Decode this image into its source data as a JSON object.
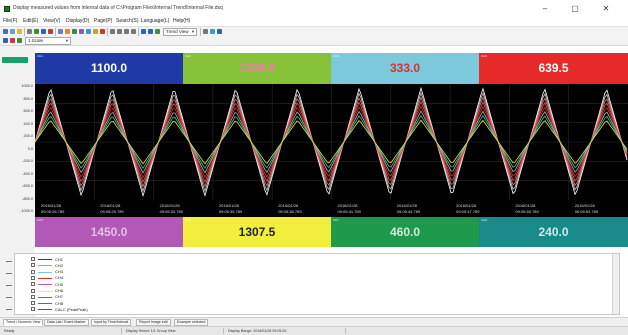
{
  "window": {
    "title": "Display measured values from internal data of C:\\Program Files\\Internal Trend\\Internal File.dsq",
    "minimize": "–",
    "maximize": "▢",
    "close": "✕"
  },
  "menu": [
    "File(F)",
    "Edit(E)",
    "View(V)",
    "Display(D)",
    "Page(P)",
    "Search(S)",
    "Language(L)",
    "Help(H)"
  ],
  "toolbar": {
    "zoom_value": "1 Scale",
    "display_select": "Trend View"
  },
  "panels_top": [
    {
      "tag": "CH1",
      "value": "1100.0",
      "bg": "#1f3aa6",
      "fg": "#ffffff"
    },
    {
      "tag": "CH2",
      "value": "1288.0",
      "bg": "#86c33b",
      "fg": "#f07aa8"
    },
    {
      "tag": "CH3",
      "value": "333.0",
      "bg": "#7bc9db",
      "fg": "#d83232"
    },
    {
      "tag": "CH4",
      "value": "639.5",
      "bg": "#e62a2a",
      "fg": "#ffffff"
    }
  ],
  "panels_bottom": [
    {
      "tag": "CH5",
      "value": "1450.0",
      "bg": "#b259b7",
      "fg": "#e6bfe8"
    },
    {
      "tag": "CH6",
      "value": "1307.5",
      "bg": "#f2ef3c",
      "fg": "#222222"
    },
    {
      "tag": "CH7",
      "value": "460.0",
      "bg": "#1f9a4c",
      "fg": "#cfe9d7"
    },
    {
      "tag": "CH8",
      "value": "240.0",
      "bg": "#198a8a",
      "fg": "#cfe8e8"
    }
  ],
  "y_axis": {
    "labels": [
      "1000.0",
      "800.0",
      "600.0",
      "400.0",
      "200.0",
      "0.0",
      "-200.0",
      "-400.0",
      "-600.0",
      "-800.0",
      "-1000.0"
    ]
  },
  "time_labels": [
    {
      "date": "2016/01/28",
      "time": "09:05:26.789"
    },
    {
      "date": "2016/01/28",
      "time": "09:05:29.789"
    },
    {
      "date": "2016/01/28",
      "time": "09:05:32.789"
    },
    {
      "date": "2016/01/28",
      "time": "09:05:35.789"
    },
    {
      "date": "2016/01/28",
      "time": "09:05:38.789"
    },
    {
      "date": "2016/01/28",
      "time": "09:05:41.789"
    },
    {
      "date": "2016/01/28",
      "time": "09:05:44.789"
    },
    {
      "date": "2016/01/28",
      "time": "09:05:47.789"
    },
    {
      "date": "2016/01/28",
      "time": "09:05:50.789"
    },
    {
      "date": "2016/01/28",
      "time": "09:05:53.789"
    }
  ],
  "trend": {
    "cycles": 9.6,
    "colors": [
      "#ffffff",
      "#d8c6c6",
      "#e07a7a",
      "#ff4d4d",
      "#c43a3a",
      "#b4b4b4",
      "#2fd09a",
      "#f0e442"
    ]
  },
  "legend": [
    {
      "label": "CH1",
      "color": "#1f3aa6"
    },
    {
      "label": "CH2",
      "color": "#86c33b"
    },
    {
      "label": "CH3",
      "color": "#7bc9db"
    },
    {
      "label": "CH4",
      "color": "#e62a2a"
    },
    {
      "label": "CH5",
      "color": "#b259b7"
    },
    {
      "label": "CH6",
      "color": "#f2ef3c"
    },
    {
      "label": "CH7",
      "color": "#1f9a4c"
    },
    {
      "label": "CH8",
      "color": "#198a8a"
    },
    {
      "label": "CALC (PeakPeak)",
      "color": "#555555"
    }
  ],
  "tabs": [
    "Trend / Numeric View",
    "Data List / Event Marker",
    "Input by Time/Interval",
    "Report Image edit",
    "Example selected"
  ],
  "status": [
    "Ready",
    "Display Select: 1/1 Group View",
    "Display Range: 2016/01/28 09:05:26"
  ]
}
